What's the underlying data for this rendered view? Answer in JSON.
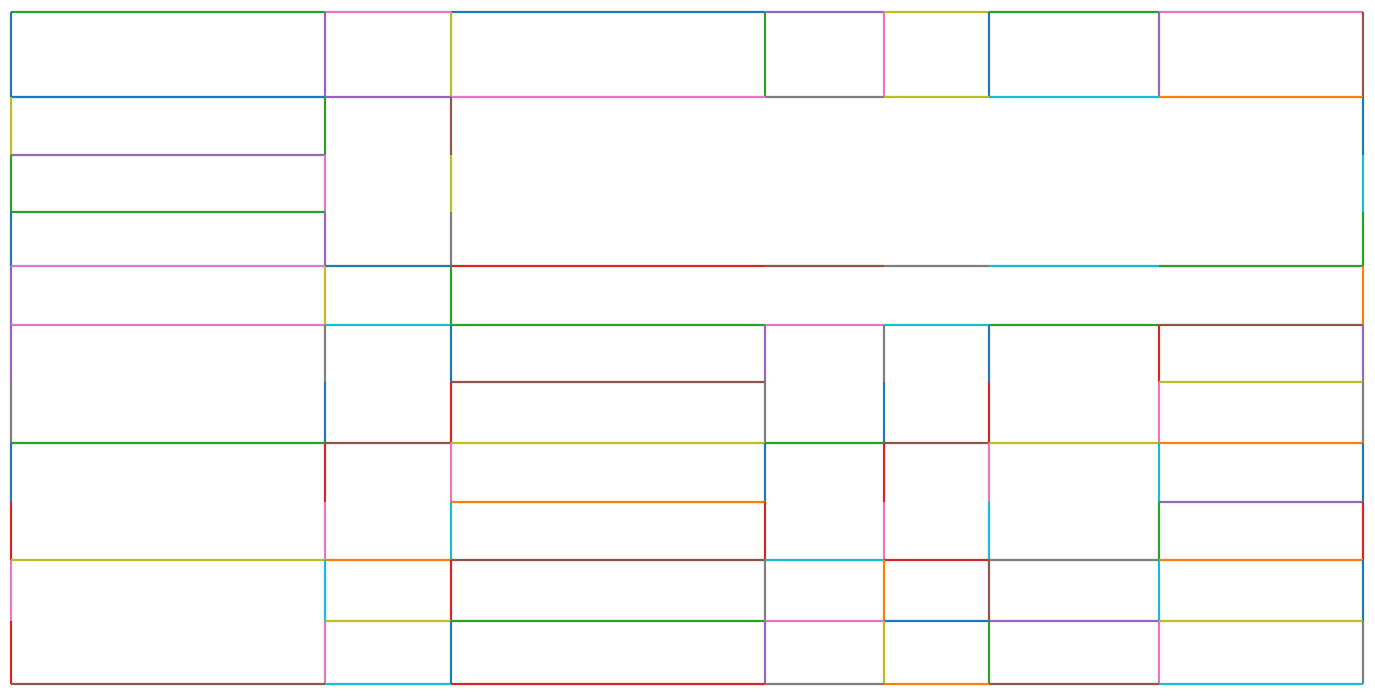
{
  "diagram": {
    "type": "rectangular-partition",
    "palette": {
      "blue": "#1f77b4",
      "orange": "#ff7f0e",
      "green": "#2ca02c",
      "red": "#d62728",
      "purple": "#9467bd",
      "brown": "#8c564b",
      "pink": "#e377c2",
      "gray": "#7f7f7f",
      "olive": "#bcbd22",
      "cyan": "#17becf"
    },
    "edge_colors": [
      "green",
      "pink",
      "blue",
      "purple",
      "olive",
      "green",
      "pink",
      "blue",
      "purple",
      "olive",
      "green",
      "pink",
      "blue",
      "purple",
      "brown",
      "blue",
      "purple",
      "pink",
      "gray",
      "olive",
      "cyan",
      "orange",
      "olive",
      "purple",
      "green",
      "green",
      "pink",
      "green",
      "blue",
      "purple",
      "pink",
      "brown",
      "olive",
      "gray",
      "blue",
      "cyan",
      "green",
      "blue",
      "red",
      "brown",
      "gray",
      "cyan",
      "green",
      "purple",
      "olive",
      "green",
      "orange",
      "pink",
      "cyan",
      "green",
      "pink",
      "cyan",
      "green",
      "brown",
      "purple",
      "gray",
      "blue",
      "purple",
      "gray",
      "blue",
      "red",
      "purple",
      "brown",
      "olive",
      "gray",
      "blue",
      "red",
      "gray",
      "blue",
      "red",
      "pink",
      "gray",
      "green",
      "brown",
      "olive",
      "green",
      "brown",
      "olive",
      "orange",
      "blue",
      "red",
      "pink",
      "blue",
      "red",
      "pink",
      "cyan",
      "blue",
      "orange",
      "purple",
      "red",
      "pink",
      "cyan",
      "red",
      "pink",
      "cyan",
      "green",
      "red",
      "olive",
      "orange",
      "brown",
      "cyan",
      "red",
      "gray",
      "orange",
      "pink",
      "cyan",
      "red",
      "gray",
      "orange",
      "brown",
      "cyan",
      "blue",
      "olive",
      "green",
      "pink",
      "blue",
      "purple",
      "olive",
      "red",
      "pink",
      "blue",
      "purple",
      "olive",
      "green",
      "pink",
      "gray",
      "brown",
      "cyan",
      "red",
      "gray",
      "orange",
      "brown",
      "cyan"
    ]
  }
}
